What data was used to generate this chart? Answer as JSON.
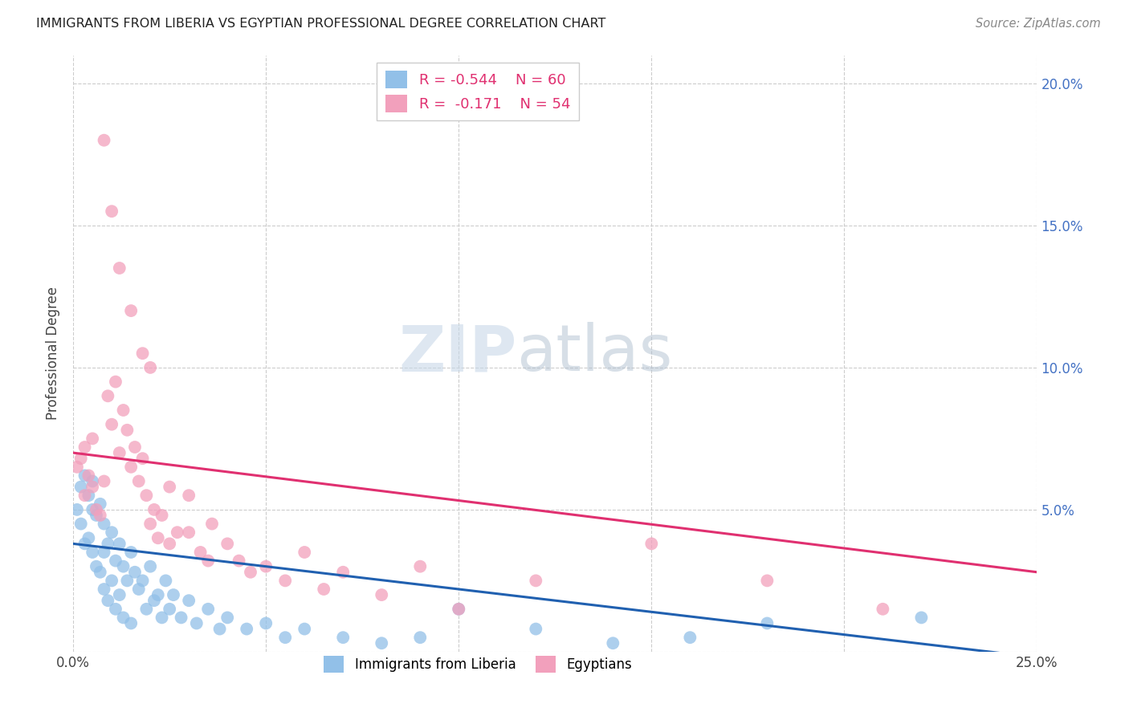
{
  "title": "IMMIGRANTS FROM LIBERIA VS EGYPTIAN PROFESSIONAL DEGREE CORRELATION CHART",
  "source": "Source: ZipAtlas.com",
  "ylabel": "Professional Degree",
  "x_min": 0.0,
  "x_max": 0.25,
  "y_min": 0.0,
  "y_max": 0.21,
  "x_ticks": [
    0.0,
    0.05,
    0.1,
    0.15,
    0.2,
    0.25
  ],
  "x_tick_labels": [
    "0.0%",
    "",
    "",
    "",
    "",
    "25.0%"
  ],
  "y_ticks": [
    0.0,
    0.05,
    0.1,
    0.15,
    0.2
  ],
  "y_tick_labels_right": [
    "",
    "5.0%",
    "10.0%",
    "15.0%",
    "20.0%"
  ],
  "legend_blue_r": "-0.544",
  "legend_blue_n": "60",
  "legend_pink_r": "-0.171",
  "legend_pink_n": "54",
  "legend_label_blue": "Immigrants from Liberia",
  "legend_label_pink": "Egyptians",
  "color_blue": "#92C0E8",
  "color_pink": "#F2A0BC",
  "line_color_blue": "#2060B0",
  "line_color_pink": "#E03070",
  "watermark_zip": "ZIP",
  "watermark_atlas": "atlas",
  "blue_x": [
    0.001,
    0.002,
    0.002,
    0.003,
    0.003,
    0.004,
    0.004,
    0.005,
    0.005,
    0.005,
    0.006,
    0.006,
    0.007,
    0.007,
    0.008,
    0.008,
    0.008,
    0.009,
    0.009,
    0.01,
    0.01,
    0.011,
    0.011,
    0.012,
    0.012,
    0.013,
    0.013,
    0.014,
    0.015,
    0.015,
    0.016,
    0.017,
    0.018,
    0.019,
    0.02,
    0.021,
    0.022,
    0.023,
    0.024,
    0.025,
    0.026,
    0.028,
    0.03,
    0.032,
    0.035,
    0.038,
    0.04,
    0.045,
    0.05,
    0.055,
    0.06,
    0.07,
    0.08,
    0.09,
    0.1,
    0.12,
    0.14,
    0.16,
    0.18,
    0.22
  ],
  "blue_y": [
    0.05,
    0.058,
    0.045,
    0.062,
    0.038,
    0.055,
    0.04,
    0.06,
    0.05,
    0.035,
    0.048,
    0.03,
    0.052,
    0.028,
    0.045,
    0.035,
    0.022,
    0.038,
    0.018,
    0.042,
    0.025,
    0.032,
    0.015,
    0.038,
    0.02,
    0.03,
    0.012,
    0.025,
    0.035,
    0.01,
    0.028,
    0.022,
    0.025,
    0.015,
    0.03,
    0.018,
    0.02,
    0.012,
    0.025,
    0.015,
    0.02,
    0.012,
    0.018,
    0.01,
    0.015,
    0.008,
    0.012,
    0.008,
    0.01,
    0.005,
    0.008,
    0.005,
    0.003,
    0.005,
    0.015,
    0.008,
    0.003,
    0.005,
    0.01,
    0.012
  ],
  "pink_x": [
    0.001,
    0.002,
    0.003,
    0.003,
    0.004,
    0.005,
    0.005,
    0.006,
    0.007,
    0.008,
    0.009,
    0.01,
    0.011,
    0.012,
    0.013,
    0.014,
    0.015,
    0.016,
    0.017,
    0.018,
    0.019,
    0.02,
    0.021,
    0.022,
    0.023,
    0.025,
    0.027,
    0.03,
    0.033,
    0.036,
    0.04,
    0.043,
    0.046,
    0.05,
    0.055,
    0.06,
    0.065,
    0.07,
    0.08,
    0.09,
    0.1,
    0.12,
    0.15,
    0.18,
    0.21,
    0.008,
    0.01,
    0.012,
    0.015,
    0.018,
    0.02,
    0.025,
    0.03,
    0.035
  ],
  "pink_y": [
    0.065,
    0.068,
    0.055,
    0.072,
    0.062,
    0.058,
    0.075,
    0.05,
    0.048,
    0.06,
    0.09,
    0.08,
    0.095,
    0.07,
    0.085,
    0.078,
    0.065,
    0.072,
    0.06,
    0.068,
    0.055,
    0.045,
    0.05,
    0.04,
    0.048,
    0.038,
    0.042,
    0.055,
    0.035,
    0.045,
    0.038,
    0.032,
    0.028,
    0.03,
    0.025,
    0.035,
    0.022,
    0.028,
    0.02,
    0.03,
    0.015,
    0.025,
    0.038,
    0.025,
    0.015,
    0.18,
    0.155,
    0.135,
    0.12,
    0.105,
    0.1,
    0.058,
    0.042,
    0.032
  ],
  "blue_line_x_start": 0.0,
  "blue_line_x_end": 0.25,
  "blue_line_y_start": 0.038,
  "blue_line_y_end": -0.002,
  "pink_line_x_start": 0.0,
  "pink_line_x_end": 0.25,
  "pink_line_y_start": 0.07,
  "pink_line_y_end": 0.028
}
